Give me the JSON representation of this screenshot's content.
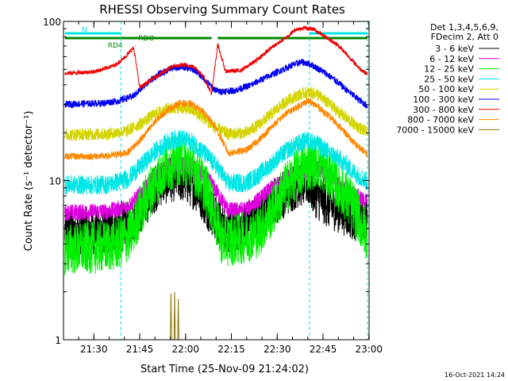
{
  "chart_data": {
    "type": "line",
    "title": "RHESSI Observing Summary Count Rates",
    "xlabel": "Start Time (25-Nov-09 21:24:02)",
    "ylabel": "Count Rate (s⁻¹ detector⁻¹)",
    "yscale": "log",
    "xlim_minutes": [
      -3.97,
      96.03
    ],
    "ylim": [
      1,
      100
    ],
    "x_ticks": [
      "21:30",
      "21:45",
      "22:00",
      "22:15",
      "22:30",
      "22:45",
      "23:00"
    ],
    "x_tick_minutes": [
      5.97,
      20.97,
      35.97,
      50.97,
      65.97,
      80.97,
      95.97
    ],
    "y_ticks": [
      "1",
      "10",
      "100"
    ],
    "y_tick_values": [
      1,
      10,
      100
    ],
    "timestamp": "16-Oct-2021 14:24",
    "legend_header": [
      "Det 1,3,4,5,6,9,",
      "FDecim 2, Att 0"
    ],
    "legend_position": "right",
    "grid": false,
    "night_boundaries_minutes": [
      14.8,
      76.5,
      95.5
    ],
    "flags": [
      {
        "label": "N",
        "color": "#00e5e5",
        "segments": [
          [
            -3.5,
            14.8
          ],
          [
            76.5,
            95.5
          ]
        ]
      },
      {
        "label": "RDO",
        "color": "#008800",
        "segments": [
          [
            -3.5,
            44.5
          ],
          [
            46.5,
            95.5
          ]
        ]
      },
      {
        "label": "RD4",
        "color": "#008800",
        "segments": [
          [
            19.4,
            19.5
          ]
        ]
      }
    ],
    "series": [
      {
        "name": "3 - 6 keV",
        "color": "#000000",
        "noise": 0.35,
        "points": [
          [
            -3.5,
            4.8
          ],
          [
            10,
            4.9
          ],
          [
            17,
            5.2
          ],
          [
            22,
            6.8
          ],
          [
            25,
            8.5
          ],
          [
            28,
            9.8
          ],
          [
            32,
            10.4
          ],
          [
            36,
            10.2
          ],
          [
            40,
            8.8
          ],
          [
            43,
            7.0
          ],
          [
            45,
            6.2
          ],
          [
            48,
            5.0
          ],
          [
            53,
            5.0
          ],
          [
            58,
            5.6
          ],
          [
            63,
            6.8
          ],
          [
            68,
            8.2
          ],
          [
            73,
            9.6
          ],
          [
            76,
            9.8
          ],
          [
            79,
            8.0
          ],
          [
            83,
            7.0
          ],
          [
            87,
            6.5
          ],
          [
            92,
            5.8
          ],
          [
            95.5,
            5.6
          ]
        ]
      },
      {
        "name": "6 - 12 keV",
        "color": "#e000e0",
        "noise": 0.12,
        "points": [
          [
            -3.5,
            6.3
          ],
          [
            10,
            6.4
          ],
          [
            17,
            6.8
          ],
          [
            22,
            8.6
          ],
          [
            26,
            10.6
          ],
          [
            30,
            12.3
          ],
          [
            34,
            12.9
          ],
          [
            38,
            12.4
          ],
          [
            41,
            11.0
          ],
          [
            44,
            9.8
          ],
          [
            46,
            8.6
          ],
          [
            50,
            6.5
          ],
          [
            56,
            6.6
          ],
          [
            60,
            7.6
          ],
          [
            65,
            9.3
          ],
          [
            69,
            10.6
          ],
          [
            73,
            11.3
          ],
          [
            76,
            11.9
          ],
          [
            79,
            12.1
          ],
          [
            83,
            10.8
          ],
          [
            87,
            9.1
          ],
          [
            91,
            8.2
          ],
          [
            95.5,
            7.3
          ]
        ]
      },
      {
        "name": "12 - 25 keV",
        "color": "#00ee00",
        "noise": 0.38,
        "points": [
          [
            -3.5,
            3.7
          ],
          [
            8,
            3.8
          ],
          [
            14,
            4.0
          ],
          [
            18,
            4.6
          ],
          [
            22,
            7.0
          ],
          [
            26,
            9.8
          ],
          [
            30,
            12.4
          ],
          [
            34,
            13.6
          ],
          [
            38,
            12.5
          ],
          [
            41,
            10.3
          ],
          [
            44,
            7.6
          ],
          [
            46,
            5.5
          ],
          [
            48,
            4.2
          ],
          [
            54,
            4.3
          ],
          [
            60,
            4.8
          ],
          [
            64,
            6.3
          ],
          [
            69,
            9.2
          ],
          [
            73,
            11.4
          ],
          [
            76,
            12.4
          ],
          [
            79,
            13.2
          ],
          [
            83,
            11.0
          ],
          [
            87,
            8.7
          ],
          [
            91,
            6.8
          ],
          [
            95.5,
            4.4
          ]
        ]
      },
      {
        "name": "25 - 50 keV",
        "color": "#00e5e5",
        "noise": 0.14,
        "points": [
          [
            -3.5,
            9.4
          ],
          [
            10,
            9.4
          ],
          [
            17,
            10.2
          ],
          [
            22,
            12.7
          ],
          [
            26,
            15.2
          ],
          [
            30,
            17.4
          ],
          [
            34,
            18.4
          ],
          [
            38,
            17.4
          ],
          [
            41,
            15.6
          ],
          [
            44,
            13.6
          ],
          [
            46,
            12.4
          ],
          [
            50,
            9.6
          ],
          [
            56,
            9.7
          ],
          [
            60,
            10.9
          ],
          [
            65,
            13.2
          ],
          [
            69,
            15.4
          ],
          [
            73,
            17.0
          ],
          [
            76,
            18.0
          ],
          [
            79,
            16.9
          ],
          [
            83,
            15.0
          ],
          [
            87,
            13.3
          ],
          [
            91,
            11.3
          ],
          [
            95.5,
            9.8
          ]
        ]
      },
      {
        "name": "50 - 100 keV",
        "color": "#d4d400",
        "noise": 0.09,
        "points": [
          [
            -3.5,
            19.4
          ],
          [
            10,
            19.6
          ],
          [
            17,
            20.5
          ],
          [
            22,
            23.3
          ],
          [
            26,
            26.2
          ],
          [
            30,
            28.2
          ],
          [
            34,
            28.8
          ],
          [
            38,
            27.8
          ],
          [
            41,
            25.4
          ],
          [
            44,
            22.8
          ],
          [
            46,
            21.3
          ],
          [
            50,
            19.6
          ],
          [
            56,
            20.0
          ],
          [
            60,
            22.5
          ],
          [
            65,
            27.2
          ],
          [
            69,
            31.6
          ],
          [
            73,
            34.6
          ],
          [
            76,
            35.8
          ],
          [
            79,
            35.0
          ],
          [
            83,
            30.2
          ],
          [
            87,
            26.1
          ],
          [
            91,
            22.7
          ],
          [
            95.5,
            20.0
          ]
        ]
      },
      {
        "name": "100 - 300 keV",
        "color": "#0000ee",
        "noise": 0.05,
        "points": [
          [
            -3.5,
            30.2
          ],
          [
            8,
            30.6
          ],
          [
            14,
            31.6
          ],
          [
            19,
            34.1
          ],
          [
            23,
            40.4
          ],
          [
            27,
            46.2
          ],
          [
            31,
            50.6
          ],
          [
            35,
            51.8
          ],
          [
            39,
            49.5
          ],
          [
            42,
            43.7
          ],
          [
            45,
            37.8
          ],
          [
            47,
            36.2
          ],
          [
            52,
            36.8
          ],
          [
            57,
            39.6
          ],
          [
            62,
            44.2
          ],
          [
            67,
            49.1
          ],
          [
            71,
            53.2
          ],
          [
            74,
            55.6
          ],
          [
            77,
            53.7
          ],
          [
            81,
            48.4
          ],
          [
            85,
            42.6
          ],
          [
            89,
            36.6
          ],
          [
            93,
            31.9
          ],
          [
            95.5,
            29.3
          ]
        ]
      },
      {
        "name": "300 - 800 keV",
        "color": "#ee0000",
        "noise": 0.03,
        "points": [
          [
            -3.5,
            47.2
          ],
          [
            6,
            48.3
          ],
          [
            10,
            50.9
          ],
          [
            13,
            53.2
          ],
          [
            16,
            59.3
          ],
          [
            19,
            68.3
          ],
          [
            21,
            38.2
          ],
          [
            24,
            42.2
          ],
          [
            28,
            47.2
          ],
          [
            32,
            52.5
          ],
          [
            36,
            53.2
          ],
          [
            39,
            51.6
          ],
          [
            42,
            44.7
          ],
          [
            44.5,
            35.0
          ],
          [
            46.5,
            72.1
          ],
          [
            49,
            48.7
          ],
          [
            54,
            49.1
          ],
          [
            59,
            56.6
          ],
          [
            64,
            68.3
          ],
          [
            69,
            79.4
          ],
          [
            72,
            89.2
          ],
          [
            75,
            91.3
          ],
          [
            78,
            89.2
          ],
          [
            82,
            79.4
          ],
          [
            86,
            70.6
          ],
          [
            90,
            58.3
          ],
          [
            93,
            50.5
          ],
          [
            95.5,
            46.5
          ]
        ]
      },
      {
        "name": "800 - 7000 keV",
        "color": "#ff8800",
        "noise": 0.05,
        "points": [
          [
            -3.5,
            14.2
          ],
          [
            10,
            14.2
          ],
          [
            17,
            15.0
          ],
          [
            22,
            18.7
          ],
          [
            26,
            23.5
          ],
          [
            30,
            27.8
          ],
          [
            34,
            30.6
          ],
          [
            38,
            30.2
          ],
          [
            41,
            27.8
          ],
          [
            44,
            24.0
          ],
          [
            46,
            21.2
          ],
          [
            50,
            14.8
          ],
          [
            56,
            15.6
          ],
          [
            60,
            18.0
          ],
          [
            65,
            22.6
          ],
          [
            69,
            26.5
          ],
          [
            73,
            29.4
          ],
          [
            76,
            31.7
          ],
          [
            79,
            29.4
          ],
          [
            83,
            25.3
          ],
          [
            87,
            21.2
          ],
          [
            91,
            17.3
          ],
          [
            95.5,
            14.6
          ]
        ]
      },
      {
        "name": "7000 - 15000 keV",
        "color": "#8b7300",
        "noise": 0,
        "points": [
          [
            31.0,
            1.0
          ],
          [
            31.2,
            1.95
          ],
          [
            31.4,
            1.0
          ],
          [
            32.2,
            1.0
          ],
          [
            32.4,
            2.0
          ],
          [
            32.6,
            1.0
          ],
          [
            33.4,
            1.0
          ],
          [
            33.6,
            1.8
          ],
          [
            33.8,
            1.0
          ]
        ]
      }
    ]
  }
}
